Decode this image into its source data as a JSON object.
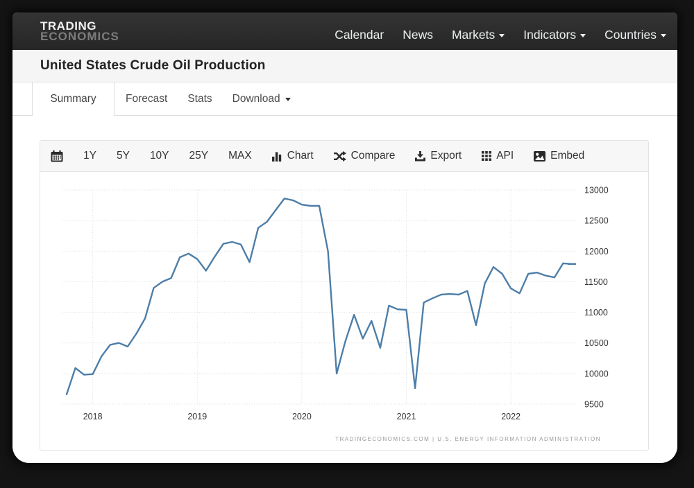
{
  "brand": {
    "line1": "TRADING",
    "line2": "ECONOMICS"
  },
  "nav": {
    "items": [
      {
        "label": "Calendar",
        "caret": false
      },
      {
        "label": "News",
        "caret": false
      },
      {
        "label": "Markets",
        "caret": true
      },
      {
        "label": "Indicators",
        "caret": true
      },
      {
        "label": "Countries",
        "caret": true
      }
    ]
  },
  "page_title": "United States Crude Oil Production",
  "tabs": {
    "active": "Summary",
    "items": [
      {
        "label": "Summary",
        "caret": false
      },
      {
        "label": "Forecast",
        "caret": false
      },
      {
        "label": "Stats",
        "caret": false
      },
      {
        "label": "Download",
        "caret": true
      }
    ]
  },
  "toolbar": {
    "calendar_icon": "calendar-icon",
    "ranges": [
      "1Y",
      "5Y",
      "10Y",
      "25Y",
      "MAX"
    ],
    "actions": [
      {
        "icon": "bar-chart-icon",
        "label": "Chart"
      },
      {
        "icon": "compare-icon",
        "label": "Compare"
      },
      {
        "icon": "export-icon",
        "label": "Export"
      },
      {
        "icon": "api-icon",
        "label": "API"
      },
      {
        "icon": "embed-icon",
        "label": "Embed"
      }
    ]
  },
  "chart_data": {
    "type": "line",
    "title": "United States Crude Oil Production",
    "x": [
      "2017-10",
      "2017-11",
      "2017-12",
      "2018-01",
      "2018-02",
      "2018-03",
      "2018-04",
      "2018-05",
      "2018-06",
      "2018-07",
      "2018-08",
      "2018-09",
      "2018-10",
      "2018-11",
      "2018-12",
      "2019-01",
      "2019-02",
      "2019-03",
      "2019-04",
      "2019-05",
      "2019-06",
      "2019-07",
      "2019-08",
      "2019-09",
      "2019-10",
      "2019-11",
      "2019-12",
      "2020-01",
      "2020-02",
      "2020-03",
      "2020-04",
      "2020-05",
      "2020-06",
      "2020-07",
      "2020-08",
      "2020-09",
      "2020-10",
      "2020-11",
      "2020-12",
      "2021-01",
      "2021-02",
      "2021-03",
      "2021-04",
      "2021-05",
      "2021-06",
      "2021-07",
      "2021-08",
      "2021-09",
      "2021-10",
      "2021-11",
      "2021-12",
      "2022-01",
      "2022-02",
      "2022-03",
      "2022-04",
      "2022-05",
      "2022-06",
      "2022-07",
      "2022-08"
    ],
    "series": [
      {
        "name": "Crude Oil Production",
        "values": [
          9660,
          10090,
          9980,
          9990,
          10280,
          10470,
          10500,
          10440,
          10650,
          10900,
          11400,
          11500,
          11560,
          11900,
          11960,
          11870,
          11680,
          11910,
          12120,
          12150,
          12110,
          11820,
          12380,
          12480,
          12670,
          12860,
          12830,
          12760,
          12740,
          12740,
          12000,
          10000,
          10530,
          10960,
          10570,
          10860,
          10420,
          11110,
          11050,
          11040,
          9760,
          11160,
          11230,
          11290,
          11300,
          11290,
          11350,
          10790,
          11470,
          11740,
          11630,
          11390,
          11310,
          11630,
          11650,
          11600,
          11570,
          11800,
          11790
        ]
      }
    ],
    "x_tick_labels": [
      "2018",
      "2019",
      "2020",
      "2021",
      "2022"
    ],
    "x_tick_month_indices": [
      3,
      15,
      27,
      39,
      51
    ],
    "ylim": [
      9500,
      13000
    ],
    "yticks": [
      9500,
      10000,
      10500,
      11000,
      11500,
      12000,
      12500,
      13000
    ],
    "legend": "none",
    "grid": "dotted",
    "line_color": "#4d7ea8",
    "grid_color": "#d9d9d9",
    "axis_label_color": "#333333"
  },
  "footer": {
    "source": "TRADINGECONOMICS.COM  |  U.S.  ENERGY  INFORMATION  ADMINISTRATION"
  },
  "colors": {
    "navbar_bg": "#2b2b2b",
    "accent_line": "#4d7ea8",
    "title_band_bg": "#f5f5f5",
    "toolbar_bg": "#f7f7f7"
  }
}
